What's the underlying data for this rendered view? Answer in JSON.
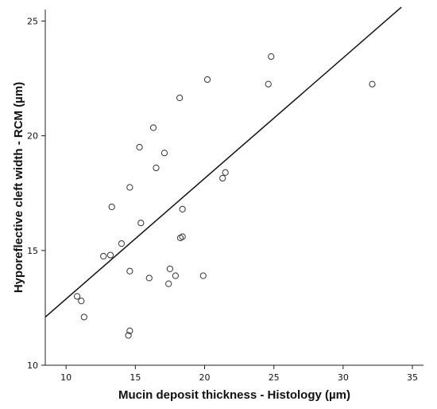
{
  "chart_data": {
    "type": "scatter",
    "title": "",
    "xlabel": "Mucin deposit thickness - Histology (µm)",
    "ylabel": "Hyporeflective cleft width - RCM (µm)",
    "xlim": [
      8.5,
      35.8
    ],
    "ylim": [
      10,
      25.5
    ],
    "xticks": [
      10,
      15,
      20,
      25,
      30,
      35
    ],
    "yticks": [
      10,
      15,
      20,
      25
    ],
    "grid": false,
    "marker": "open-circle",
    "marker_color": "#333333",
    "points": [
      {
        "x": 10.8,
        "y": 13.0
      },
      {
        "x": 11.1,
        "y": 12.8
      },
      {
        "x": 11.3,
        "y": 12.1
      },
      {
        "x": 12.7,
        "y": 14.75
      },
      {
        "x": 13.2,
        "y": 14.8
      },
      {
        "x": 13.3,
        "y": 16.9
      },
      {
        "x": 14.0,
        "y": 15.3
      },
      {
        "x": 14.5,
        "y": 11.3
      },
      {
        "x": 14.6,
        "y": 11.5
      },
      {
        "x": 14.6,
        "y": 14.1
      },
      {
        "x": 14.6,
        "y": 17.75
      },
      {
        "x": 15.3,
        "y": 19.5
      },
      {
        "x": 15.4,
        "y": 16.2
      },
      {
        "x": 16.0,
        "y": 13.8
      },
      {
        "x": 16.3,
        "y": 20.35
      },
      {
        "x": 16.5,
        "y": 18.6
      },
      {
        "x": 17.1,
        "y": 19.25
      },
      {
        "x": 17.4,
        "y": 13.55
      },
      {
        "x": 17.5,
        "y": 14.2
      },
      {
        "x": 17.9,
        "y": 13.9
      },
      {
        "x": 18.2,
        "y": 21.65
      },
      {
        "x": 18.25,
        "y": 15.55
      },
      {
        "x": 18.4,
        "y": 15.6
      },
      {
        "x": 18.4,
        "y": 16.8
      },
      {
        "x": 19.9,
        "y": 13.9
      },
      {
        "x": 20.2,
        "y": 22.45
      },
      {
        "x": 21.3,
        "y": 18.15
      },
      {
        "x": 21.5,
        "y": 18.4
      },
      {
        "x": 24.6,
        "y": 22.25
      },
      {
        "x": 24.8,
        "y": 23.45
      },
      {
        "x": 32.1,
        "y": 22.25
      }
    ],
    "fit_line": {
      "x": [
        8.5,
        34.2
      ],
      "y": [
        12.1,
        25.6
      ],
      "color": "#111111"
    }
  }
}
